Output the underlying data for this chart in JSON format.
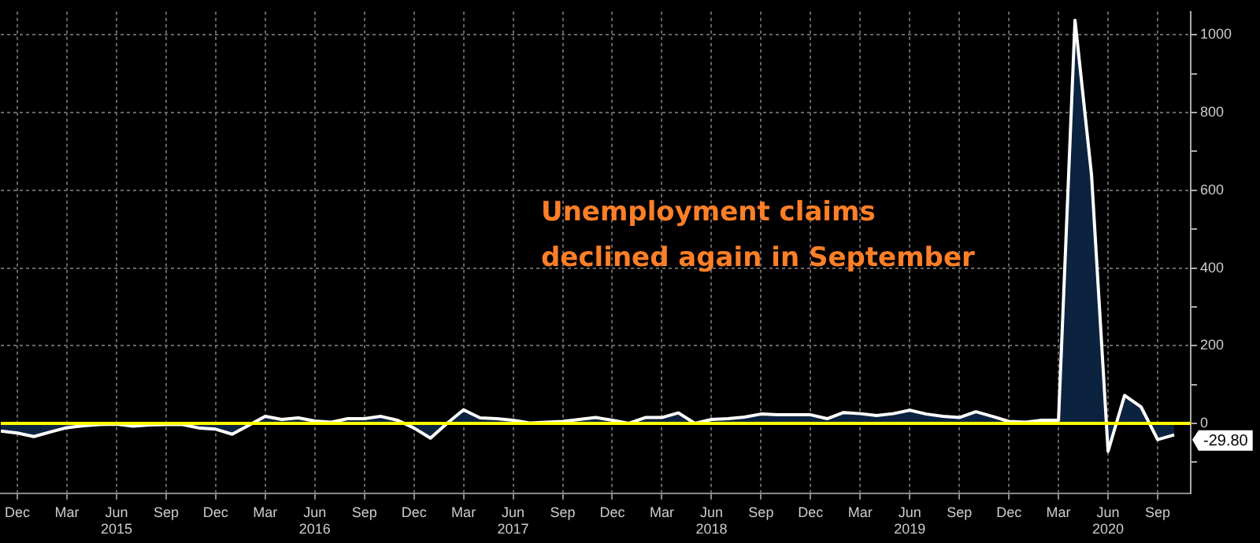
{
  "chart_data": {
    "type": "area",
    "x": [
      "2014-11",
      "2014-12",
      "2015-01",
      "2015-02",
      "2015-03",
      "2015-04",
      "2015-05",
      "2015-06",
      "2015-07",
      "2015-08",
      "2015-09",
      "2015-10",
      "2015-11",
      "2015-12",
      "2016-01",
      "2016-02",
      "2016-03",
      "2016-04",
      "2016-05",
      "2016-06",
      "2016-07",
      "2016-08",
      "2016-09",
      "2016-10",
      "2016-11",
      "2016-12",
      "2017-01",
      "2017-02",
      "2017-03",
      "2017-04",
      "2017-05",
      "2017-06",
      "2017-07",
      "2017-08",
      "2017-09",
      "2017-10",
      "2017-11",
      "2017-12",
      "2018-01",
      "2018-02",
      "2018-03",
      "2018-04",
      "2018-05",
      "2018-06",
      "2018-07",
      "2018-08",
      "2018-09",
      "2018-10",
      "2018-11",
      "2018-12",
      "2019-01",
      "2019-02",
      "2019-03",
      "2019-04",
      "2019-05",
      "2019-06",
      "2019-07",
      "2019-08",
      "2019-09",
      "2019-10",
      "2019-11",
      "2019-12",
      "2020-01",
      "2020-02",
      "2020-03",
      "2020-04",
      "2020-05",
      "2020-06",
      "2020-07",
      "2020-08",
      "2020-09",
      "2020-10"
    ],
    "series": [
      {
        "color": "#0c2340",
        "values": [
          -20,
          -25,
          -34,
          -22,
          -11,
          -6,
          -3,
          -2,
          -7,
          -4,
          -3,
          -3,
          -12,
          -15,
          -28,
          -5,
          18,
          10,
          14,
          6,
          3,
          12,
          12,
          18,
          8,
          -12,
          -38,
          0,
          35,
          14,
          12,
          8,
          1,
          3,
          5,
          10,
          15,
          8,
          0,
          15,
          15,
          27,
          0,
          10,
          12,
          16,
          24,
          22,
          22,
          22,
          12,
          28,
          25,
          20,
          25,
          34,
          24,
          18,
          15,
          30,
          18,
          5,
          3,
          8,
          8,
          1038,
          639,
          -72,
          72,
          42,
          -42,
          -29.8
        ]
      }
    ],
    "xlim": [
      "2014-11",
      "2020-11"
    ],
    "xticks": [
      {
        "value": "2014-12",
        "label": "Dec"
      },
      {
        "value": "2015-03",
        "label": "Mar"
      },
      {
        "value": "2015-06",
        "label": "Jun\n2015"
      },
      {
        "value": "2015-09",
        "label": "Sep"
      },
      {
        "value": "2015-12",
        "label": "Dec"
      },
      {
        "value": "2016-03",
        "label": "Mar"
      },
      {
        "value": "2016-06",
        "label": "Jun\n2016"
      },
      {
        "value": "2016-09",
        "label": "Sep"
      },
      {
        "value": "2016-12",
        "label": "Dec"
      },
      {
        "value": "2017-03",
        "label": "Mar"
      },
      {
        "value": "2017-06",
        "label": "Jun\n2017"
      },
      {
        "value": "2017-09",
        "label": "Sep"
      },
      {
        "value": "2017-12",
        "label": "Dec"
      },
      {
        "value": "2018-03",
        "label": "Mar"
      },
      {
        "value": "2018-06",
        "label": "Jun\n2018"
      },
      {
        "value": "2018-09",
        "label": "Sep"
      },
      {
        "value": "2018-12",
        "label": "Dec"
      },
      {
        "value": "2019-03",
        "label": "Mar"
      },
      {
        "value": "2019-06",
        "label": "Jun\n2019"
      },
      {
        "value": "2019-09",
        "label": "Sep"
      },
      {
        "value": "2019-12",
        "label": "Dec"
      },
      {
        "value": "2020-03",
        "label": "Mar"
      },
      {
        "value": "2020-06",
        "label": "Jun\n2020"
      },
      {
        "value": "2020-09",
        "label": "Sep"
      }
    ],
    "ylim": [
      -180,
      1060
    ],
    "yticks": [
      {
        "value": -100,
        "label": null
      },
      0,
      {
        "value": 100,
        "label": null
      },
      200,
      {
        "value": 300,
        "label": null
      },
      400,
      {
        "value": 500,
        "label": null
      },
      600,
      {
        "value": 700,
        "label": null
      },
      800,
      {
        "value": 900,
        "label": null
      },
      1000
    ],
    "grid": true,
    "legend": false,
    "marker": "none",
    "line_style": "solid",
    "ref_lines": [
      {
        "axis": "y",
        "value": 0,
        "color": "#ffff00"
      }
    ],
    "annotations": [
      "Unemployment claims\ndeclined again in September",
      {
        "text": "-29.80",
        "x": "2020-10",
        "y": -29.8
      }
    ]
  }
}
